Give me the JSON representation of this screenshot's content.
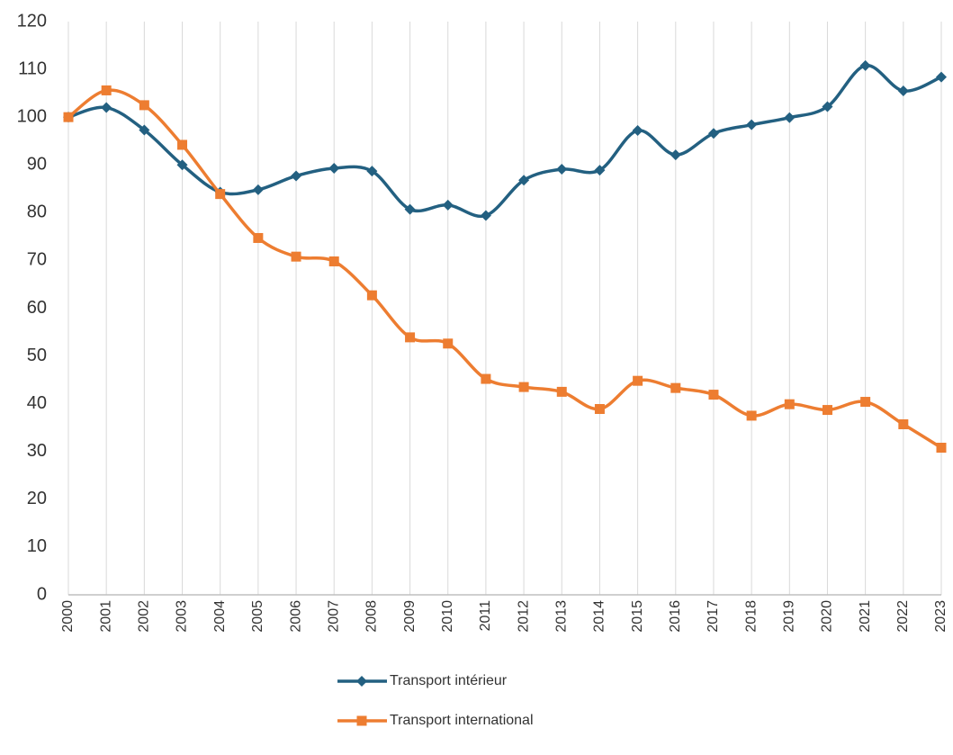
{
  "chart_data": {
    "type": "line",
    "categories": [
      "2000",
      "2001",
      "2002",
      "2003",
      "2004",
      "2005",
      "2006",
      "2007",
      "2008",
      "2009",
      "2010",
      "2011",
      "2012",
      "2013",
      "2014",
      "2015",
      "2016",
      "2017",
      "2018",
      "2019",
      "2020",
      "2021",
      "2022",
      "2023"
    ],
    "series": [
      {
        "name": "Transport intérieur",
        "color": "#236081",
        "marker": "diamond",
        "values": [
          100,
          102,
          97.3,
          90,
          84.3,
          84.8,
          87.7,
          89.3,
          88.7,
          80.7,
          81.6,
          79.4,
          86.8,
          89.1,
          88.9,
          97.2,
          92.1,
          96.6,
          98.4,
          99.9,
          102.2,
          110.8,
          105.5,
          108.4
        ]
      },
      {
        "name": "Transport international",
        "color": "#ed7d31",
        "marker": "square",
        "values": [
          100,
          105.6,
          102.5,
          94.2,
          83.9,
          74.7,
          70.8,
          69.8,
          62.7,
          53.9,
          52.6,
          45.2,
          43.5,
          42.5,
          38.9,
          44.8,
          43.3,
          41.9,
          37.5,
          39.9,
          38.7,
          40.4,
          35.7,
          30.8
        ]
      }
    ],
    "ylim": [
      0,
      120
    ],
    "yticks": [
      0,
      10,
      20,
      30,
      40,
      50,
      60,
      70,
      80,
      90,
      100,
      110,
      120
    ],
    "xgrid": true,
    "smooth": true,
    "legend": "bottom"
  }
}
